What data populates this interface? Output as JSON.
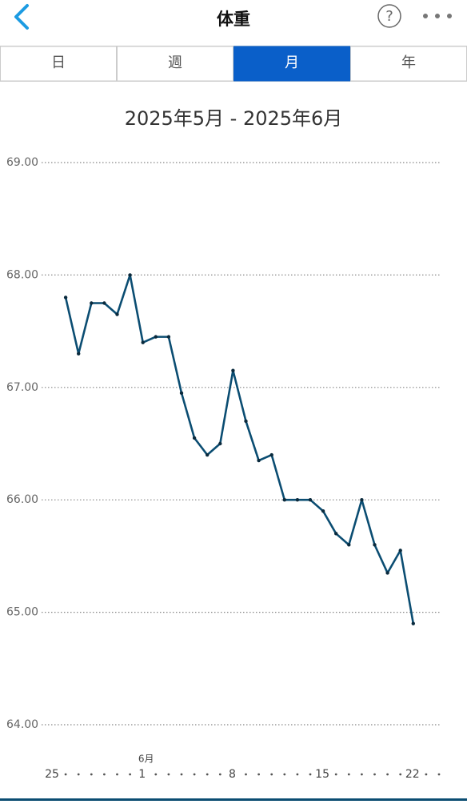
{
  "header": {
    "title": "体重",
    "help_icon": "?"
  },
  "tabs": [
    {
      "label": "日",
      "selected": false
    },
    {
      "label": "週",
      "selected": false
    },
    {
      "label": "月",
      "selected": true
    },
    {
      "label": "年",
      "selected": false
    }
  ],
  "chart_data": {
    "type": "line",
    "title": "2025年5月 - 2025年6月",
    "month_annotation": {
      "text": "6月",
      "category_index": 7
    },
    "categories": [
      "25",
      null,
      null,
      null,
      null,
      null,
      null,
      "1",
      null,
      null,
      null,
      null,
      null,
      null,
      "8",
      null,
      null,
      null,
      null,
      null,
      null,
      "15",
      null,
      null,
      null,
      null,
      null,
      null,
      "22",
      null,
      null
    ],
    "values": [
      null,
      67.8,
      67.3,
      67.75,
      67.75,
      67.65,
      68.0,
      67.4,
      67.45,
      67.45,
      66.95,
      66.55,
      66.4,
      66.5,
      67.15,
      66.7,
      66.35,
      66.4,
      66.0,
      66.0,
      66.0,
      65.9,
      65.7,
      65.6,
      66.0,
      65.6,
      65.35,
      65.55,
      64.9,
      null,
      null
    ],
    "color": "#0b4d72",
    "ylim": [
      64,
      69
    ],
    "yticks": [
      {
        "value": 64,
        "label": "64.00"
      },
      {
        "value": 65,
        "label": "65.00"
      },
      {
        "value": 66,
        "label": "66.00"
      },
      {
        "value": 67,
        "label": "67.00"
      },
      {
        "value": 68,
        "label": "68.00"
      },
      {
        "value": 69,
        "label": "69.00"
      }
    ],
    "grid": true
  }
}
